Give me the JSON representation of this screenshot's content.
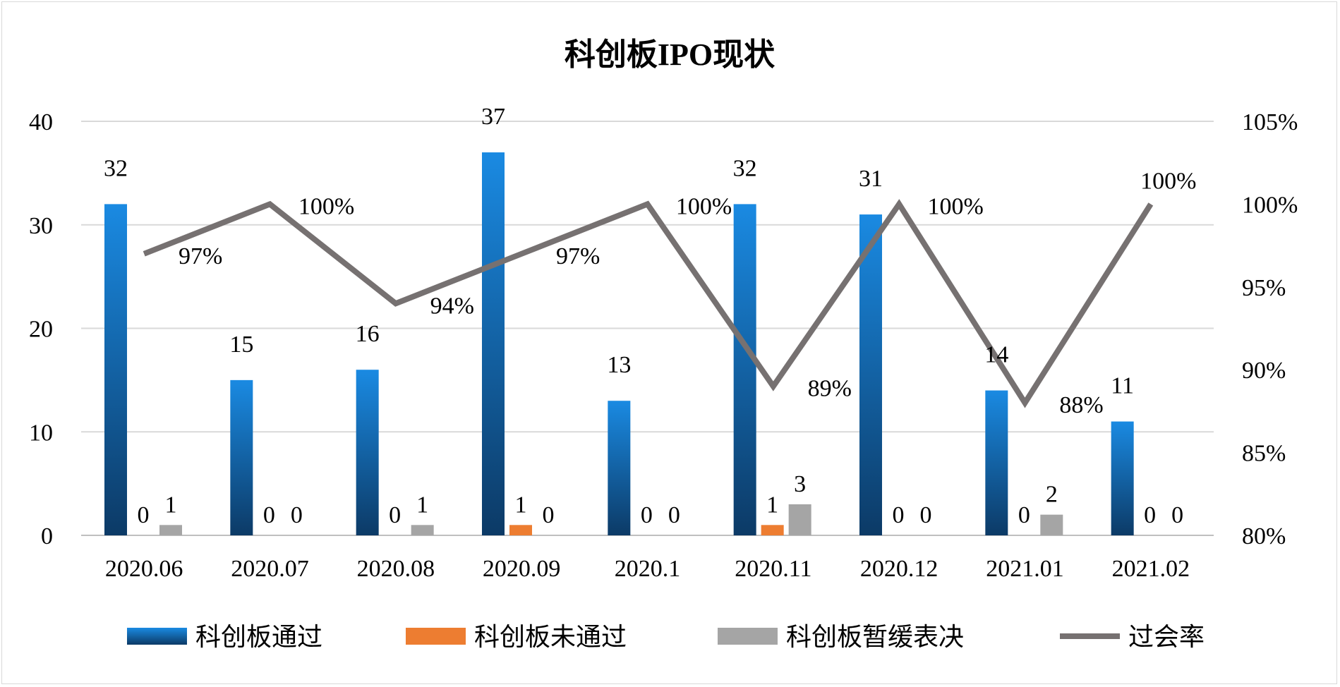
{
  "chart_data": {
    "type": "bar",
    "title": "科创板IPO现状",
    "categories": [
      "2020.06",
      "2020.07",
      "2020.08",
      "2020.09",
      "2020.1",
      "2020.11",
      "2020.12",
      "2021.01",
      "2021.02"
    ],
    "series": [
      {
        "name": "科创板通过",
        "type": "bar",
        "axis": "left",
        "values": [
          32,
          15,
          16,
          37,
          13,
          32,
          31,
          14,
          11
        ],
        "color": "#1a88dc"
      },
      {
        "name": "科创板未通过",
        "type": "bar",
        "axis": "left",
        "values": [
          0,
          0,
          0,
          1,
          0,
          1,
          0,
          0,
          0
        ],
        "color": "#ed7d31"
      },
      {
        "name": "科创板暂缓表决",
        "type": "bar",
        "axis": "left",
        "values": [
          1,
          0,
          1,
          0,
          0,
          3,
          0,
          2,
          0
        ],
        "color": "#a5a5a5"
      },
      {
        "name": "过会率",
        "type": "line",
        "axis": "right",
        "values": [
          97,
          100,
          94,
          97,
          100,
          89,
          100,
          88,
          100
        ],
        "labels": [
          "97%",
          "100%",
          "94%",
          "97%",
          "100%",
          "89%",
          "100%",
          "88%",
          "100%"
        ],
        "color": "#767171"
      }
    ],
    "left_axis": {
      "ylim": [
        0,
        40
      ],
      "ticks": [
        "0",
        "10",
        "20",
        "30",
        "40"
      ]
    },
    "right_axis": {
      "ylim": [
        80,
        105
      ],
      "ticks": [
        "80%",
        "85%",
        "90%",
        "95%",
        "100%",
        "105%"
      ]
    },
    "grid": true,
    "legend": "bottom"
  }
}
